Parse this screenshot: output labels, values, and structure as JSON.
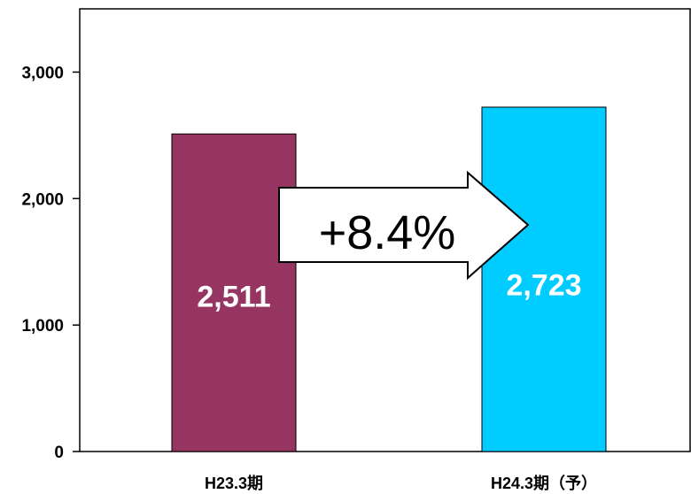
{
  "chart_data": {
    "type": "bar",
    "categories": [
      "H23.3期",
      "H24.3期（予）"
    ],
    "values": [
      2511,
      2723
    ],
    "value_labels": [
      "2,511",
      "2,723"
    ],
    "colors": [
      "#963462",
      "#00CCFF"
    ],
    "yticks": [
      0,
      1000,
      2000,
      3000
    ],
    "ytick_labels": [
      "0",
      "1,000",
      "2,000",
      "3,000"
    ],
    "ylim": [
      0,
      3500
    ],
    "grid": false,
    "annotation": "+8.4%"
  }
}
